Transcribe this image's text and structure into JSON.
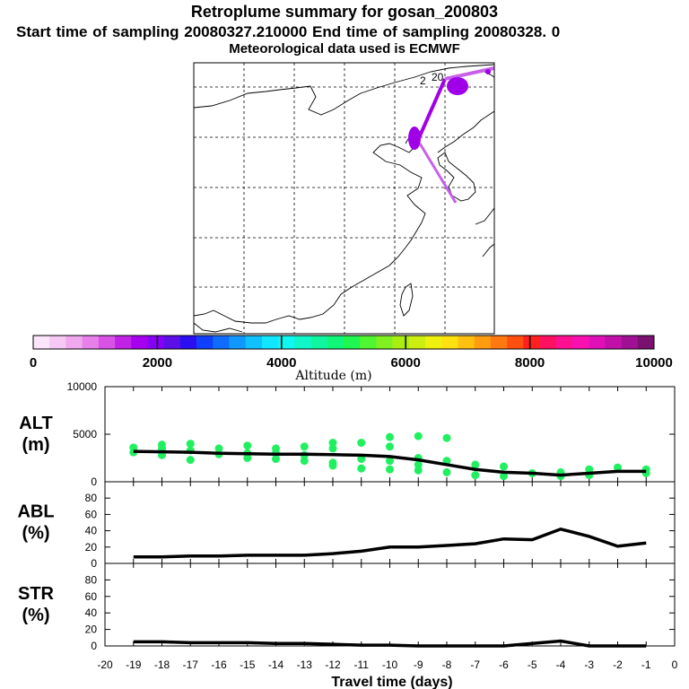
{
  "header": {
    "title": "Retroplume summary for gosan_200803",
    "sampling": "Start time of sampling 20080327.210000     End time of sampling 20080328.     0",
    "met": "Meteorological data used is ECMWF"
  },
  "map": {
    "plume_labels": [
      "2",
      "20"
    ]
  },
  "colorbar": {
    "label": "Altitude (m)",
    "ticks": [
      "0",
      "2000",
      "4000",
      "6000",
      "8000",
      "10000"
    ],
    "colors": [
      "#fce4fb",
      "#f6c8f4",
      "#f0a8ee",
      "#e880ea",
      "#d852e6",
      "#c023e6",
      "#a600ee",
      "#8800f6",
      "#5a10e6",
      "#2a10f0",
      "#1040ff",
      "#106cff",
      "#1098ff",
      "#10c0ff",
      "#10e6ff",
      "#10f6f0",
      "#10f6c8",
      "#10f6a0",
      "#10f678",
      "#20f650",
      "#50f630",
      "#80f020",
      "#aaee10",
      "#ccee10",
      "#eef010",
      "#ffe010",
      "#ffc010",
      "#ff9c10",
      "#ff7810",
      "#ff5010",
      "#ff2020",
      "#ff1060",
      "#ff1090",
      "#f810b0",
      "#e010b8",
      "#c010a8",
      "#a01094",
      "#7a1070"
    ]
  },
  "chart_data": [
    {
      "type": "scatter",
      "name": "ALT",
      "ylabel": "ALT\n(m)",
      "ylim": [
        0,
        10000
      ],
      "yticks": [
        "0",
        "5000",
        "10000"
      ],
      "xlim": [
        -20,
        0
      ],
      "line": {
        "x": [
          -19,
          -18,
          -17,
          -16,
          -15,
          -14,
          -13,
          -12,
          -11,
          -10,
          -9,
          -8,
          -7,
          -6,
          -5,
          -4,
          -3,
          -2,
          -1
        ],
        "y": [
          3200,
          3150,
          3100,
          3000,
          2950,
          2900,
          2900,
          2850,
          2800,
          2650,
          2300,
          1800,
          1300,
          1000,
          900,
          700,
          900,
          1100,
          1100
        ]
      },
      "points": [
        {
          "x": -19,
          "y": 3600
        },
        {
          "x": -19,
          "y": 3100
        },
        {
          "x": -18,
          "y": 3900
        },
        {
          "x": -18,
          "y": 3500
        },
        {
          "x": -18,
          "y": 2800
        },
        {
          "x": -17,
          "y": 4000
        },
        {
          "x": -17,
          "y": 3300
        },
        {
          "x": -17,
          "y": 2300
        },
        {
          "x": -16,
          "y": 3500
        },
        {
          "x": -16,
          "y": 2900
        },
        {
          "x": -15,
          "y": 3800
        },
        {
          "x": -15,
          "y": 3000
        },
        {
          "x": -15,
          "y": 2500
        },
        {
          "x": -14,
          "y": 3500
        },
        {
          "x": -14,
          "y": 3000
        },
        {
          "x": -14,
          "y": 2400
        },
        {
          "x": -13,
          "y": 3700
        },
        {
          "x": -13,
          "y": 2800
        },
        {
          "x": -13,
          "y": 2200
        },
        {
          "x": -12,
          "y": 4100
        },
        {
          "x": -12,
          "y": 3500
        },
        {
          "x": -12,
          "y": 2000
        },
        {
          "x": -12,
          "y": 1700
        },
        {
          "x": -11,
          "y": 4100
        },
        {
          "x": -11,
          "y": 2400
        },
        {
          "x": -11,
          "y": 1400
        },
        {
          "x": -10,
          "y": 4700
        },
        {
          "x": -10,
          "y": 3700
        },
        {
          "x": -10,
          "y": 2200
        },
        {
          "x": -10,
          "y": 1300
        },
        {
          "x": -9,
          "y": 4800
        },
        {
          "x": -9,
          "y": 2500
        },
        {
          "x": -9,
          "y": 1800
        },
        {
          "x": -9,
          "y": 1200
        },
        {
          "x": -8,
          "y": 4600
        },
        {
          "x": -8,
          "y": 2200
        },
        {
          "x": -8,
          "y": 1000
        },
        {
          "x": -7,
          "y": 1800
        },
        {
          "x": -7,
          "y": 700
        },
        {
          "x": -6,
          "y": 1600
        },
        {
          "x": -6,
          "y": 600
        },
        {
          "x": -5,
          "y": 900
        },
        {
          "x": -4,
          "y": 1000
        },
        {
          "x": -4,
          "y": 600
        },
        {
          "x": -3,
          "y": 1300
        },
        {
          "x": -3,
          "y": 700
        },
        {
          "x": -2,
          "y": 1500
        },
        {
          "x": -1,
          "y": 1300
        },
        {
          "x": -1,
          "y": 900
        }
      ]
    },
    {
      "type": "line",
      "name": "ABL",
      "ylabel": "ABL\n(%)",
      "ylim": [
        0,
        100
      ],
      "yticks": [
        "0",
        "20",
        "40",
        "60",
        "80"
      ],
      "xlim": [
        -20,
        0
      ],
      "x": [
        -19,
        -18,
        -17,
        -16,
        -15,
        -14,
        -13,
        -12,
        -11,
        -10,
        -9,
        -8,
        -7,
        -6,
        -5,
        -4,
        -3,
        -2,
        -1
      ],
      "y": [
        8,
        8,
        9,
        9,
        10,
        10,
        10,
        12,
        15,
        20,
        20,
        22,
        24,
        30,
        29,
        42,
        33,
        21,
        25
      ]
    },
    {
      "type": "line",
      "name": "STR",
      "ylabel": "STR\n(%)",
      "ylim": [
        0,
        100
      ],
      "yticks": [
        "0",
        "20",
        "40",
        "60",
        "80"
      ],
      "xlim": [
        -20,
        0
      ],
      "x": [
        -19,
        -18,
        -17,
        -16,
        -15,
        -14,
        -13,
        -12,
        -11,
        -10,
        -9,
        -8,
        -7,
        -6,
        -5,
        -4,
        -3,
        -2,
        -1
      ],
      "y": [
        5,
        5,
        4,
        4,
        4,
        3,
        3,
        2,
        1,
        1,
        0,
        0,
        0,
        0,
        3,
        6,
        0,
        0,
        0
      ]
    }
  ],
  "xaxis": {
    "label": "Travel time (days)",
    "ticks": [
      "-20",
      "-19",
      "-18",
      "-17",
      "-16",
      "-15",
      "-14",
      "-13",
      "-12",
      "-11",
      "-10",
      "-9",
      "-8",
      "-7",
      "-6",
      "-5",
      "-4",
      "-3",
      "-2",
      "-1",
      "0"
    ]
  }
}
